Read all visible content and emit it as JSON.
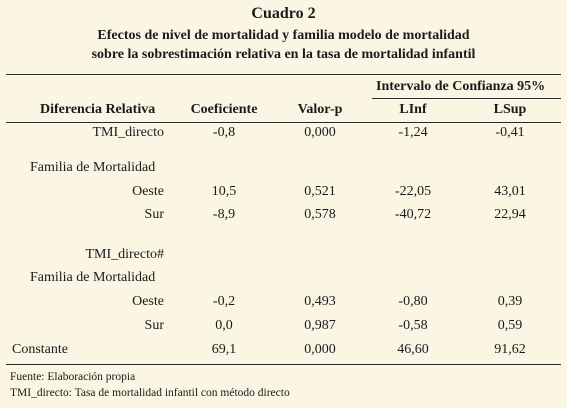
{
  "title": "Cuadro 2",
  "subtitle_line1": "Efectos de nivel de mortalidad y familia modelo de mortalidad",
  "subtitle_line2": "sobre la sobrestimación relativa en la tasa de mortalidad infantil",
  "header": {
    "group": "Intervalo de Confianza 95%",
    "col0": "Diferencia Relativa",
    "col1": "Coeficiente",
    "col2": "Valor-p",
    "col3": "LInf",
    "col4": "LSup"
  },
  "rows": [
    {
      "label": "TMI_directo",
      "coef": "-0,8",
      "p": "0,000",
      "linf": "-1,24",
      "lsup": "-0,41"
    },
    {
      "label": "Familia de Mortalidad",
      "coef": "",
      "p": "",
      "linf": "",
      "lsup": ""
    },
    {
      "label": "Oeste",
      "coef": "10,5",
      "p": "0,521",
      "linf": "-22,05",
      "lsup": "43,01"
    },
    {
      "label": "Sur",
      "coef": "-8,9",
      "p": "0,578",
      "linf": "-40,72",
      "lsup": "22,94"
    },
    {
      "label": "TMI_directo#",
      "coef": "",
      "p": "",
      "linf": "",
      "lsup": ""
    },
    {
      "label": "Familia de Mortalidad",
      "coef": "",
      "p": "",
      "linf": "",
      "lsup": ""
    },
    {
      "label": "Oeste",
      "coef": "-0,2",
      "p": "0,493",
      "linf": "-0,80",
      "lsup": "0,39"
    },
    {
      "label": "Sur",
      "coef": "0,0",
      "p": "0,987",
      "linf": "-0,58",
      "lsup": "0,59"
    },
    {
      "label": "Constante",
      "coef": "69,1",
      "p": "0,000",
      "linf": "46,60",
      "lsup": "91,62"
    }
  ],
  "footnotes": [
    "Fuente: Elaboración propia",
    "TMI_directo: Tasa de mortalidad infantil con método directo"
  ]
}
